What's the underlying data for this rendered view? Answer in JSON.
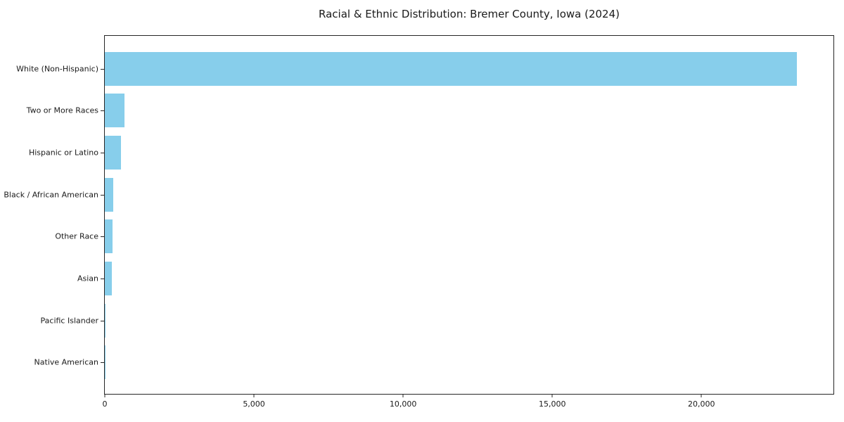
{
  "title": "Racial & Ethnic Distribution: Bremer County, Iowa (2024)",
  "colors": {
    "bar": "#87CEEB",
    "axis": "#262626",
    "text": "#1a1a1a",
    "background": "#ffffff"
  },
  "chart_data": {
    "type": "bar",
    "orientation": "horizontal",
    "title": "Racial & Ethnic Distribution: Bremer County, Iowa (2024)",
    "categories": [
      "White (Non-Hispanic)",
      "Two or More Races",
      "Hispanic or Latino",
      "Black / African American",
      "Other Race",
      "Asian",
      "Pacific Islander",
      "Native American"
    ],
    "values": [
      23200,
      650,
      540,
      290,
      270,
      240,
      15,
      10
    ],
    "bar_color": "#87CEEB",
    "xlabel": "",
    "ylabel": "",
    "xlim": [
      0,
      24425
    ],
    "xticks": [
      0,
      5000,
      10000,
      15000,
      20000
    ],
    "xtick_labels": [
      "0",
      "5,000",
      "10,000",
      "15,000",
      "20,000"
    ],
    "grid": false,
    "legend": false,
    "bar_height_fraction": 0.8,
    "category_order_top_to_bottom": true
  }
}
